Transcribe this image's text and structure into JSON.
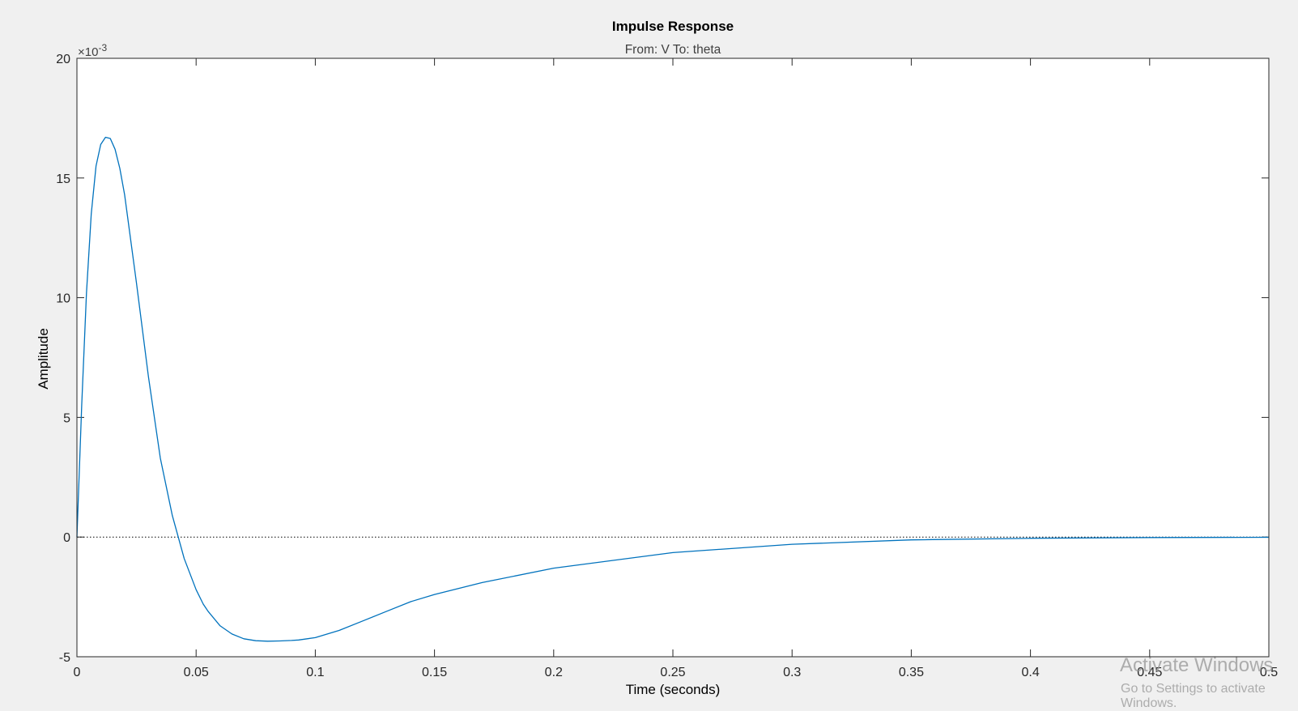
{
  "colors": {
    "background": "#f0f0f0",
    "axes_bg": "#ffffff",
    "series": "#0072bd",
    "zero_line": "#000000"
  },
  "chart_data": {
    "type": "line",
    "title": "Impulse Response",
    "subtitle": "From: V  To: theta",
    "xlabel": "Time (seconds)",
    "ylabel": "Amplitude",
    "y_exponent_label": "×10",
    "y_exponent_power": "-3",
    "xlim": [
      0,
      0.5
    ],
    "ylim": [
      -5,
      20
    ],
    "y_scale_note": "values in units of 10^-3",
    "x_ticks": [
      0,
      0.05,
      0.1,
      0.15,
      0.2,
      0.25,
      0.3,
      0.35,
      0.4,
      0.45,
      0.5
    ],
    "x_tick_labels": [
      "0",
      "0.05",
      "0.1",
      "0.15",
      "0.2",
      "0.25",
      "0.3",
      "0.35",
      "0.4",
      "0.45",
      "0.5"
    ],
    "y_ticks": [
      -5,
      0,
      5,
      10,
      15,
      20
    ],
    "y_tick_labels": [
      "-5",
      "0",
      "5",
      "10",
      "15",
      "20"
    ],
    "grid": false,
    "zero_reference_line": true,
    "series": [
      {
        "x": [
          0,
          0.002,
          0.004,
          0.006,
          0.008,
          0.01,
          0.012,
          0.014,
          0.016,
          0.018,
          0.02,
          0.025,
          0.03,
          0.035,
          0.04,
          0.045,
          0.05,
          0.053,
          0.055,
          0.06,
          0.065,
          0.07,
          0.075,
          0.08,
          0.085,
          0.09,
          0.093,
          0.1,
          0.11,
          0.12,
          0.13,
          0.14,
          0.15,
          0.17,
          0.2,
          0.25,
          0.3,
          0.35,
          0.4,
          0.45,
          0.5
        ],
        "y": [
          0,
          5.5,
          10.2,
          13.5,
          15.5,
          16.4,
          16.7,
          16.65,
          16.2,
          15.4,
          14.3,
          10.6,
          6.7,
          3.3,
          0.9,
          -0.9,
          -2.2,
          -2.8,
          -3.1,
          -3.7,
          -4.05,
          -4.25,
          -4.33,
          -4.35,
          -4.34,
          -4.32,
          -4.3,
          -4.2,
          -3.9,
          -3.5,
          -3.1,
          -2.7,
          -2.4,
          -1.9,
          -1.3,
          -0.65,
          -0.3,
          -0.12,
          -0.05,
          -0.02,
          -0.01
        ]
      }
    ]
  },
  "watermark": {
    "title": "Activate Windows",
    "subtitle": "Go to Settings to activate Windows."
  }
}
